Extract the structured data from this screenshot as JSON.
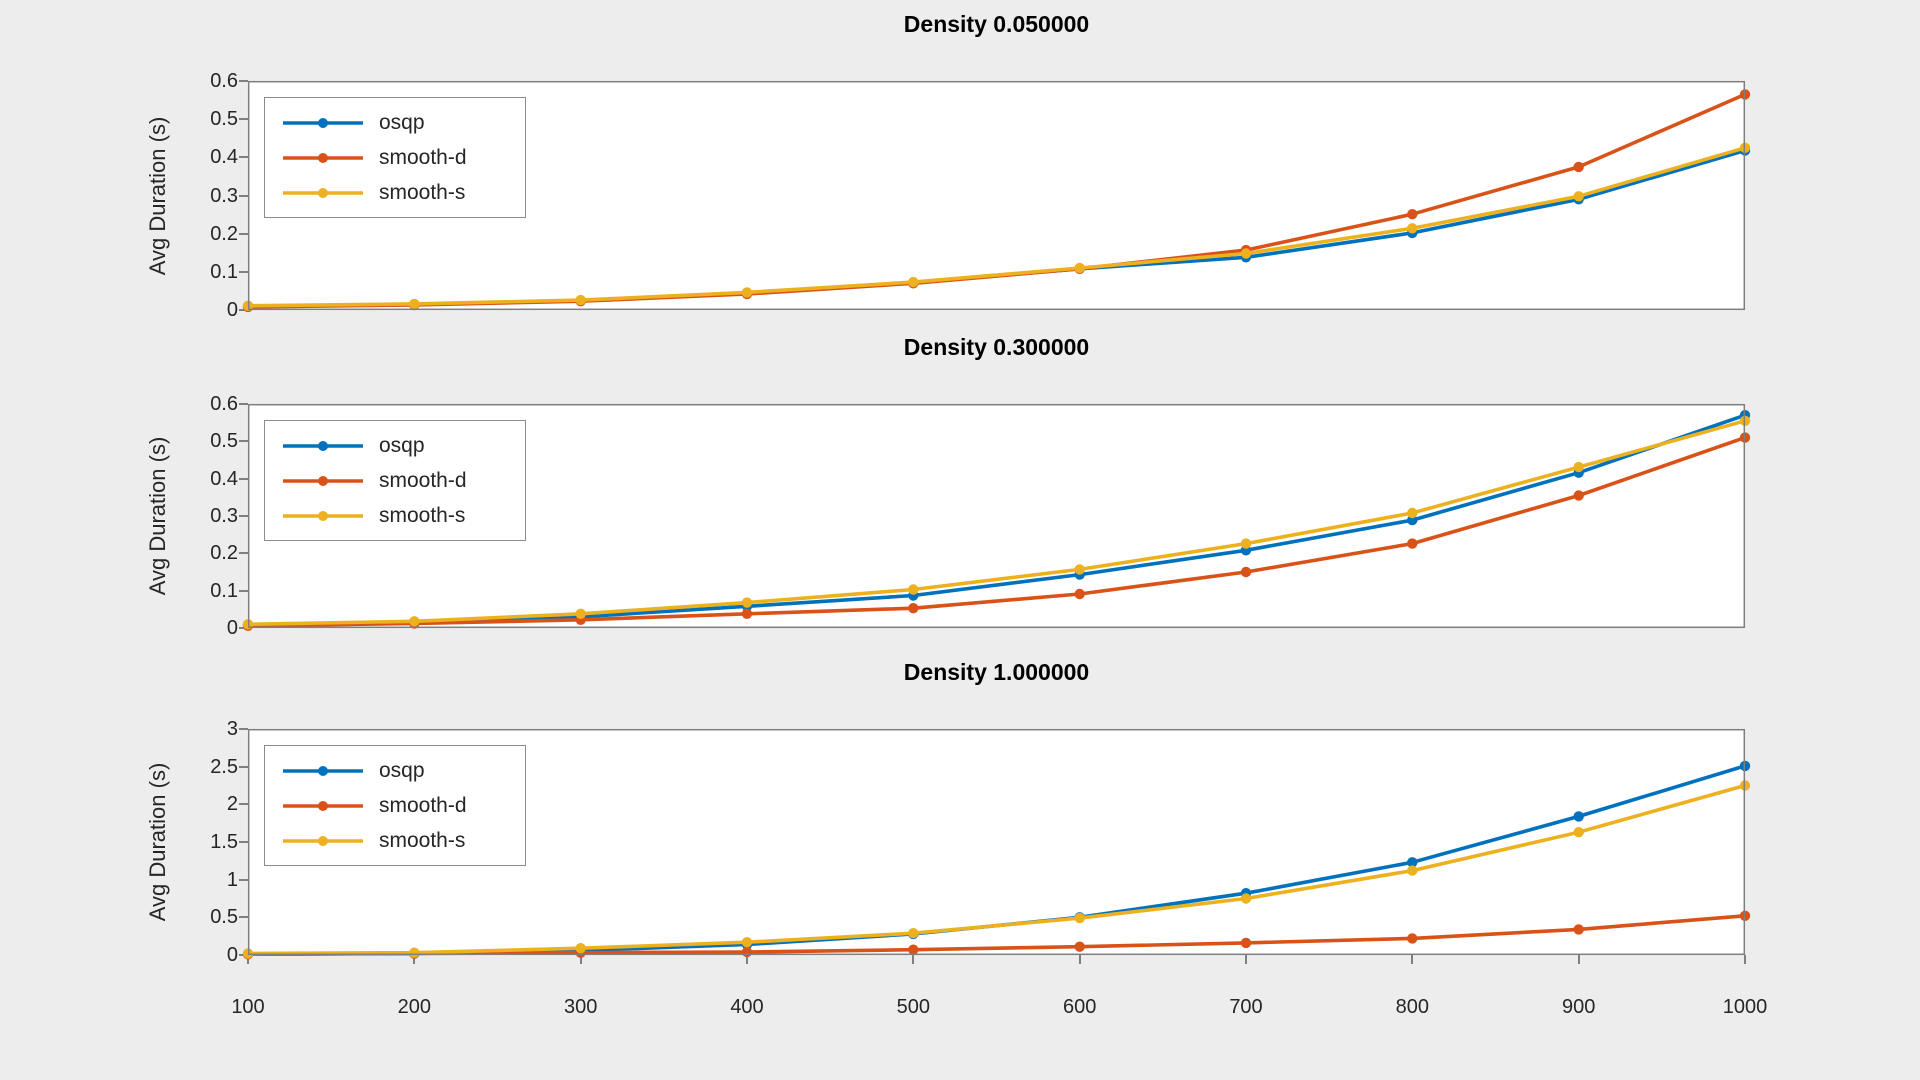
{
  "figure": {
    "ylabel": "Avg Duration (s)",
    "background_color": "#ededed",
    "axes_color": "#7f7f7f",
    "tick_text_color": "#262626"
  },
  "chart_data": [
    {
      "type": "line",
      "title": "Density 0.050000",
      "ylabel": "Avg Duration (s)",
      "xlabel": "",
      "xlim": [
        100,
        1000
      ],
      "ylim": [
        0,
        0.6
      ],
      "grid": false,
      "legend_position": "top-left",
      "x": [
        100,
        200,
        300,
        400,
        500,
        600,
        700,
        800,
        900,
        1000
      ],
      "ytick_labels": [
        "0",
        "0.1",
        "0.2",
        "0.3",
        "0.4",
        "0.5",
        "0.6"
      ],
      "yticks": [
        0,
        0.1,
        0.2,
        0.3,
        0.4,
        0.5,
        0.6
      ],
      "xtick_labels": [],
      "series": [
        {
          "name": "osqp",
          "color": "#0072BD",
          "values": [
            0.01,
            0.015,
            0.025,
            0.044,
            0.071,
            0.108,
            0.138,
            0.202,
            0.29,
            0.418
          ]
        },
        {
          "name": "smooth-d",
          "color": "#D95319",
          "values": [
            0.008,
            0.013,
            0.023,
            0.042,
            0.07,
            0.108,
            0.157,
            0.251,
            0.375,
            0.565
          ]
        },
        {
          "name": "smooth-s",
          "color": "#EDB120",
          "values": [
            0.011,
            0.016,
            0.026,
            0.046,
            0.073,
            0.11,
            0.148,
            0.214,
            0.298,
            0.425
          ]
        }
      ]
    },
    {
      "type": "line",
      "title": "Density 0.300000",
      "ylabel": "Avg Duration (s)",
      "xlabel": "",
      "xlim": [
        100,
        1000
      ],
      "ylim": [
        0,
        0.6
      ],
      "grid": false,
      "legend_position": "top-left",
      "x": [
        100,
        200,
        300,
        400,
        500,
        600,
        700,
        800,
        900,
        1000
      ],
      "ytick_labels": [
        "0",
        "0.1",
        "0.2",
        "0.3",
        "0.4",
        "0.5",
        "0.6"
      ],
      "yticks": [
        0,
        0.1,
        0.2,
        0.3,
        0.4,
        0.5,
        0.6
      ],
      "xtick_labels": [],
      "series": [
        {
          "name": "osqp",
          "color": "#0072BD",
          "values": [
            0.008,
            0.015,
            0.03,
            0.058,
            0.087,
            0.143,
            0.208,
            0.289,
            0.416,
            0.57
          ]
        },
        {
          "name": "smooth-d",
          "color": "#D95319",
          "values": [
            0.006,
            0.012,
            0.022,
            0.038,
            0.053,
            0.091,
            0.15,
            0.226,
            0.355,
            0.51
          ]
        },
        {
          "name": "smooth-s",
          "color": "#EDB120",
          "values": [
            0.01,
            0.018,
            0.038,
            0.068,
            0.103,
            0.157,
            0.226,
            0.308,
            0.431,
            0.555
          ]
        }
      ]
    },
    {
      "type": "line",
      "title": "Density 1.000000",
      "ylabel": "Avg Duration (s)",
      "xlabel": "",
      "xlim": [
        100,
        1000
      ],
      "ylim": [
        0,
        3
      ],
      "grid": false,
      "legend_position": "top-left",
      "x": [
        100,
        200,
        300,
        400,
        500,
        600,
        700,
        800,
        900,
        1000
      ],
      "ytick_labels": [
        "0",
        "0.5",
        "1",
        "1.5",
        "2",
        "2.5",
        "3"
      ],
      "yticks": [
        0,
        0.5,
        1,
        1.5,
        2,
        2.5,
        3
      ],
      "xtick_labels": [
        "100",
        "200",
        "300",
        "400",
        "500",
        "600",
        "700",
        "800",
        "900",
        "1000"
      ],
      "series": [
        {
          "name": "osqp",
          "color": "#0072BD",
          "values": [
            0.01,
            0.02,
            0.06,
            0.14,
            0.28,
            0.5,
            0.82,
            1.23,
            1.84,
            2.51
          ]
        },
        {
          "name": "smooth-d",
          "color": "#D95319",
          "values": [
            0.01,
            0.02,
            0.03,
            0.04,
            0.07,
            0.11,
            0.16,
            0.22,
            0.34,
            0.52
          ]
        },
        {
          "name": "smooth-s",
          "color": "#EDB120",
          "values": [
            0.02,
            0.03,
            0.09,
            0.17,
            0.29,
            0.49,
            0.75,
            1.12,
            1.63,
            2.25
          ]
        }
      ]
    }
  ]
}
